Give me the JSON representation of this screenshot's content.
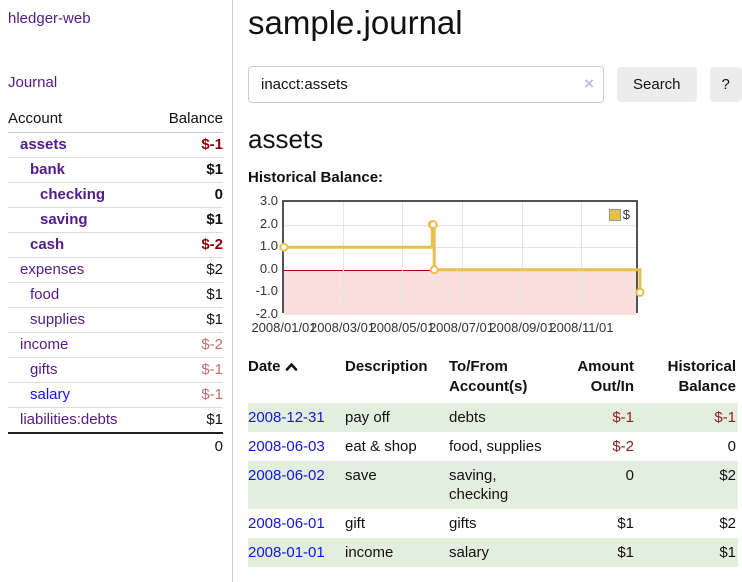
{
  "app": {
    "title": "hledger-web"
  },
  "colors": {
    "link_purple": "#551a8b",
    "link_blue": "#1414e6",
    "negative_strong": "#8b0000",
    "negative_soft": "#c06f6f",
    "row_stripe_green": "#e3efde"
  },
  "sidebar": {
    "journal_link": "Journal",
    "accounts": {
      "col_account": "Account",
      "col_balance": "Balance",
      "rows": [
        {
          "name": "assets",
          "balance": "$-1"
        },
        {
          "name": "bank",
          "balance": "$1"
        },
        {
          "name": "checking",
          "balance": "0"
        },
        {
          "name": "saving",
          "balance": "$1"
        },
        {
          "name": "cash",
          "balance": "$-2"
        },
        {
          "name": "expenses",
          "balance": "$2"
        },
        {
          "name": "food",
          "balance": "$1"
        },
        {
          "name": "supplies",
          "balance": "$1"
        },
        {
          "name": "income",
          "balance": "$-2"
        },
        {
          "name": "gifts",
          "balance": "$-1"
        },
        {
          "name": "salary",
          "balance": "$-1"
        },
        {
          "name": "liabilities:debts",
          "balance": "$1"
        }
      ],
      "total": "0"
    }
  },
  "main": {
    "title": "sample.journal",
    "search": {
      "value": "inacct:assets",
      "clear_icon": "×",
      "search_button": "Search",
      "help_button": "?"
    },
    "account_heading": "assets",
    "chart_title": "Historical Balance:"
  },
  "chart_data": {
    "type": "line",
    "step": true,
    "title": "Historical Balance:",
    "ylim": [
      -2,
      3
    ],
    "yticks": [
      "3.0",
      "2.0",
      "1.0",
      "0.0",
      "-1.0",
      "-2.0"
    ],
    "xticks": [
      "2008/01/01",
      "2008/03/01",
      "2008/05/01",
      "2008/07/01",
      "2008/09/01",
      "2008/11/01"
    ],
    "xrange": [
      "2008/01/01",
      "2008/12/31"
    ],
    "series": [
      {
        "name": "$",
        "color": "#e8c04a",
        "points": [
          [
            "2008/01/01",
            1
          ],
          [
            "2008/06/01",
            2
          ],
          [
            "2008/06/02",
            2
          ],
          [
            "2008/06/03",
            0
          ],
          [
            "2008/12/31",
            -1
          ]
        ]
      }
    ],
    "legend_position": "top-right",
    "grid": true,
    "negative_region_color": "#fbdfdf",
    "zero_line_color": "#a40000"
  },
  "register": {
    "headers": {
      "date": "Date",
      "description": "Description",
      "accounts": "To/From Account(s)",
      "amount": "Amount Out/In",
      "balance": "Historical Balance"
    },
    "rows": [
      {
        "date": "2008-12-31",
        "description": "pay off",
        "accounts": "debts",
        "amount": "$-1",
        "balance": "$-1"
      },
      {
        "date": "2008-06-03",
        "description": "eat & shop",
        "accounts": "food, supplies",
        "amount": "$-2",
        "balance": "0"
      },
      {
        "date": "2008-06-02",
        "description": "save",
        "accounts": "saving, checking",
        "amount": "0",
        "balance": "$2"
      },
      {
        "date": "2008-06-01",
        "description": "gift",
        "accounts": "gifts",
        "amount": "$1",
        "balance": "$2"
      },
      {
        "date": "2008-01-01",
        "description": "income",
        "accounts": "salary",
        "amount": "$1",
        "balance": "$1"
      }
    ]
  }
}
